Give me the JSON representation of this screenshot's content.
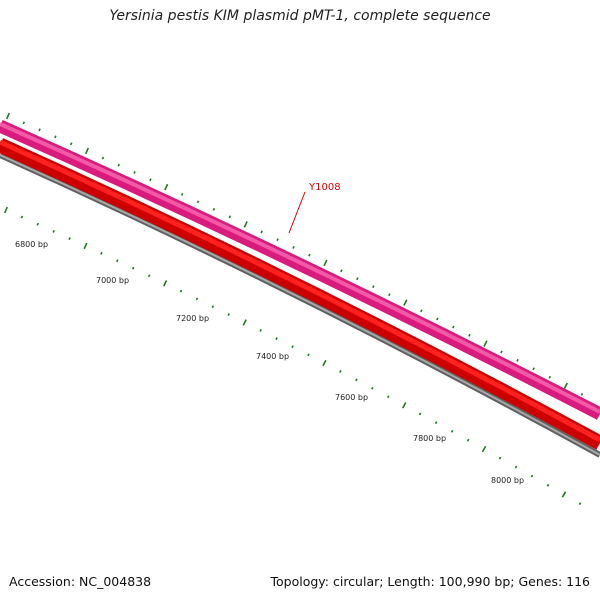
{
  "title": "Yersinia pestis KIM plasmid pMT-1, complete sequence",
  "footer": {
    "accession": "Accession: NC_004838",
    "summary": "Topology: circular; Length: 100,990 bp; Genes: 116"
  },
  "colors": {
    "forward_strand": "#e8238a",
    "reverse_strand": "#ee0000",
    "backbone": "#808080",
    "ticks": "#1e7a1e",
    "gene_label": "#dd0000"
  },
  "gene_labels": [
    {
      "name": "Y1008"
    }
  ],
  "bp_ticks": [
    {
      "label": "6800 bp"
    },
    {
      "label": "7000 bp"
    },
    {
      "label": "7200 bp"
    },
    {
      "label": "7400 bp"
    },
    {
      "label": "7600 bp"
    },
    {
      "label": "7800 bp"
    },
    {
      "label": "8000 bp"
    }
  ]
}
